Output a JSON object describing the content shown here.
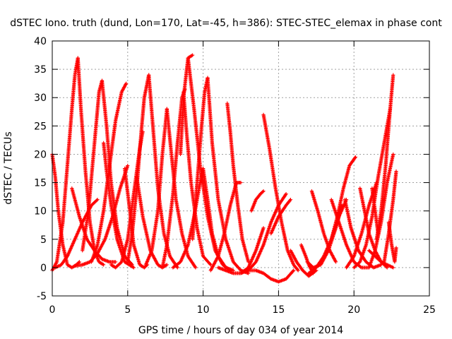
{
  "chart_data": {
    "type": "scatter",
    "title": "dSTEC Iono. truth (dund, Lon=170, Lat=-45, h=386): STEC-STEC_elemax in phase cont",
    "xlabel": "GPS time / hours of day 034 of year 2014",
    "ylabel": "dSTEC  / TECUs",
    "xlim": [
      0,
      25
    ],
    "ylim": [
      -5,
      40
    ],
    "xticks": [
      0,
      5,
      10,
      15,
      20,
      25
    ],
    "yticks": [
      -5,
      0,
      5,
      10,
      15,
      20,
      25,
      30,
      35,
      40
    ],
    "grid": true,
    "marker": "+",
    "color": "#ff0000",
    "series": [
      {
        "x": [
          0.0,
          0.2,
          0.4,
          0.7,
          1.0,
          1.3,
          1.6,
          1.8
        ],
        "y": [
          20,
          16,
          10,
          4,
          0.5,
          0,
          0.5,
          1
        ]
      },
      {
        "x": [
          0.0,
          0.3,
          0.7,
          1.0,
          1.3,
          1.5,
          1.7
        ],
        "y": [
          -0.5,
          1,
          8,
          18,
          28,
          34,
          37
        ]
      },
      {
        "x": [
          1.7,
          1.9,
          2.2,
          2.5,
          2.8,
          3.1,
          3.4
        ],
        "y": [
          37,
          28,
          17,
          8,
          3,
          1,
          0.5
        ]
      },
      {
        "x": [
          0.2,
          0.6,
          1.0,
          1.5,
          2.0,
          2.6,
          3.0
        ],
        "y": [
          0,
          0.5,
          2,
          5,
          8,
          11,
          12
        ]
      },
      {
        "x": [
          1.3,
          1.8,
          2.3,
          2.8,
          3.3,
          3.8,
          4.2
        ],
        "y": [
          14,
          9,
          5,
          3,
          1.5,
          1,
          1
        ]
      },
      {
        "x": [
          2.0,
          2.4,
          2.8,
          3.1,
          3.3
        ],
        "y": [
          3,
          10,
          22,
          31,
          33
        ]
      },
      {
        "x": [
          3.3,
          3.6,
          3.9,
          4.3,
          4.8,
          5.3
        ],
        "y": [
          33,
          25,
          15,
          7,
          2,
          0.5
        ]
      },
      {
        "x": [
          1.5,
          2.0,
          2.5,
          3.0,
          3.5,
          4.0,
          4.5,
          5.0
        ],
        "y": [
          0.3,
          0.5,
          1,
          2.5,
          5,
          9,
          14,
          18
        ]
      },
      {
        "x": [
          2.6,
          3.0,
          3.4,
          3.8,
          4.2,
          4.6,
          4.9
        ],
        "y": [
          1,
          4,
          10,
          18,
          26,
          31,
          32.5
        ]
      },
      {
        "x": [
          3.4,
          3.6,
          3.9,
          4.3,
          4.8,
          5.4
        ],
        "y": [
          22,
          17,
          11,
          5,
          1,
          0
        ]
      },
      {
        "x": [
          3.9,
          4.2,
          4.6,
          5.0,
          5.4,
          5.8,
          6.0
        ],
        "y": [
          0.5,
          0,
          1,
          5,
          13,
          21,
          24
        ]
      },
      {
        "x": [
          4.8,
          5.1,
          5.4,
          5.8,
          6.1,
          6.3
        ],
        "y": [
          17.5,
          11,
          4,
          0.5,
          0,
          0.5
        ]
      },
      {
        "x": [
          5.0,
          5.3,
          5.6,
          5.9,
          6.1,
          6.4
        ],
        "y": [
          1,
          6,
          14,
          24,
          30,
          34
        ]
      },
      {
        "x": [
          6.4,
          6.7,
          7.0,
          7.4,
          7.8,
          8.3
        ],
        "y": [
          34,
          24,
          14,
          6,
          2,
          0
        ]
      },
      {
        "x": [
          5.6,
          6.0,
          6.5,
          7.0,
          7.3,
          7.6
        ],
        "y": [
          16,
          9,
          3,
          0.5,
          0,
          0.5
        ]
      },
      {
        "x": [
          6.2,
          6.6,
          7.0,
          7.3,
          7.6
        ],
        "y": [
          0.5,
          3,
          10,
          20,
          28
        ]
      },
      {
        "x": [
          7.6,
          7.9,
          8.2,
          8.6,
          9.0,
          9.5
        ],
        "y": [
          28,
          20,
          12,
          6,
          2,
          0
        ]
      },
      {
        "x": [
          7.3,
          7.6,
          8.0,
          8.3,
          8.6,
          8.8
        ],
        "y": [
          0,
          4,
          13,
          22,
          30,
          31.5
        ]
      },
      {
        "x": [
          8.7,
          8.9,
          9.2,
          9.6,
          10.0,
          10.5
        ],
        "y": [
          31,
          24,
          15,
          7,
          2,
          0.5
        ]
      },
      {
        "x": [
          8.5,
          8.7,
          9.0,
          9.3
        ],
        "y": [
          20,
          30,
          37,
          37.5
        ]
      },
      {
        "x": [
          9.0,
          9.4,
          9.8,
          10.3,
          10.8,
          11.3,
          11.8
        ],
        "y": [
          37,
          28,
          18,
          9,
          3,
          0.5,
          -0.5
        ]
      },
      {
        "x": [
          8.0,
          8.5,
          9.0,
          9.4,
          9.8,
          10.0
        ],
        "y": [
          0,
          1,
          4,
          9,
          15,
          17.5
        ]
      },
      {
        "x": [
          10.0,
          10.3,
          10.6,
          11.0,
          11.5,
          12.0
        ],
        "y": [
          17.5,
          12,
          6,
          2,
          0,
          -0.5
        ]
      },
      {
        "x": [
          9.3,
          9.6,
          9.9,
          10.1,
          10.3
        ],
        "y": [
          5,
          15,
          25,
          31,
          33.5
        ]
      },
      {
        "x": [
          10.3,
          10.6,
          11.0,
          11.5,
          12.0,
          12.5,
          13.0
        ],
        "y": [
          33.5,
          22,
          12,
          5,
          1,
          -0.5,
          -1
        ]
      },
      {
        "x": [
          10.5,
          11.0,
          11.4,
          11.8,
          12.2,
          12.5
        ],
        "y": [
          -0.5,
          2,
          6,
          11,
          15,
          15
        ]
      },
      {
        "x": [
          11.0,
          11.5,
          12.0,
          12.5,
          13.0,
          13.5,
          14.0
        ],
        "y": [
          0,
          -0.5,
          -1,
          -1,
          0,
          3,
          7
        ]
      },
      {
        "x": [
          11.6,
          11.8,
          12.0,
          12.3,
          12.6,
          13.0
        ],
        "y": [
          29,
          24,
          18,
          11,
          5,
          1
        ]
      },
      {
        "x": [
          12.5,
          13.0,
          13.5,
          14.0,
          14.5,
          15.0,
          15.5
        ],
        "y": [
          -1,
          -0.5,
          1,
          4,
          8,
          11,
          13
        ]
      },
      {
        "x": [
          13.2,
          13.5,
          13.8,
          14.0
        ],
        "y": [
          10,
          12,
          13,
          13.5
        ]
      },
      {
        "x": [
          14.0,
          14.4,
          14.8,
          15.2,
          15.6,
          16.0,
          16.3
        ],
        "y": [
          27,
          21,
          14,
          8,
          3,
          0.5,
          -0.5
        ]
      },
      {
        "x": [
          13.0,
          13.5,
          14.0,
          14.5,
          15.0,
          15.5,
          16.0
        ],
        "y": [
          -0.5,
          -0.5,
          -1,
          -2,
          -2.5,
          -2,
          -0.5
        ]
      },
      {
        "x": [
          14.5,
          15.0,
          15.5,
          15.8
        ],
        "y": [
          6,
          9,
          11,
          12
        ]
      },
      {
        "x": [
          15.8,
          16.2,
          16.6,
          17.0,
          17.5
        ],
        "y": [
          3,
          1,
          -0.5,
          -1.5,
          -0.5
        ]
      },
      {
        "x": [
          16.5,
          16.8,
          17.0,
          17.3
        ],
        "y": [
          4,
          2,
          0.5,
          -1
        ]
      },
      {
        "x": [
          17.0,
          17.5,
          18.0,
          18.5,
          19.0,
          19.5
        ],
        "y": [
          -1,
          0,
          2,
          5,
          9,
          12
        ]
      },
      {
        "x": [
          16.9,
          17.3,
          17.8,
          18.3,
          18.8,
          19.2
        ],
        "y": [
          1,
          0,
          0.5,
          3,
          7,
          11
        ]
      },
      {
        "x": [
          17.2,
          17.6,
          18.0,
          18.4,
          18.8
        ],
        "y": [
          13.5,
          10,
          6,
          3,
          1
        ]
      },
      {
        "x": [
          18.5,
          18.9,
          19.3,
          19.7,
          20.1
        ],
        "y": [
          5,
          9,
          14,
          18,
          19.5
        ]
      },
      {
        "x": [
          18.5,
          19.0,
          19.5,
          20.0,
          20.5,
          21.0
        ],
        "y": [
          12,
          8,
          4,
          1,
          0,
          0
        ]
      },
      {
        "x": [
          19.4,
          19.8,
          20.3,
          20.8,
          21.3,
          21.8
        ],
        "y": [
          12,
          7,
          3,
          1,
          0,
          0.5
        ]
      },
      {
        "x": [
          19.5,
          20.0,
          20.5,
          21.0,
          21.5
        ],
        "y": [
          0,
          2,
          6,
          11,
          15
        ]
      },
      {
        "x": [
          20.4,
          20.7,
          21.0,
          21.4,
          21.8,
          22.2
        ],
        "y": [
          14,
          10,
          6,
          3,
          1,
          0
        ]
      },
      {
        "x": [
          20.0,
          20.4,
          20.8,
          21.2,
          21.6,
          22.0,
          22.4
        ],
        "y": [
          0,
          1,
          4,
          9,
          16,
          22,
          28
        ]
      },
      {
        "x": [
          21.0,
          21.4,
          21.8,
          22.2,
          22.6
        ],
        "y": [
          0,
          3,
          8,
          15,
          20
        ]
      },
      {
        "x": [
          21.5,
          21.8,
          22.1,
          22.4,
          22.6
        ],
        "y": [
          5,
          10,
          18,
          28,
          34
        ]
      },
      {
        "x": [
          22.0,
          22.3,
          22.6,
          22.8
        ],
        "y": [
          1,
          6,
          12,
          17
        ]
      },
      {
        "x": [
          21.0,
          21.4,
          21.8,
          22.2,
          22.6
        ],
        "y": [
          3,
          2,
          1,
          0.5,
          0
        ]
      },
      {
        "x": [
          22.3,
          22.5,
          22.7,
          22.8
        ],
        "y": [
          8,
          4,
          1,
          3.5
        ]
      },
      {
        "x": [
          21.2,
          21.4,
          21.6
        ],
        "y": [
          14,
          10,
          6
        ]
      }
    ]
  }
}
